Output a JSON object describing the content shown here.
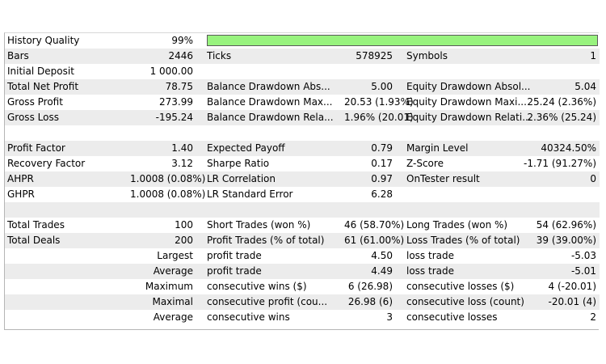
{
  "history": {
    "label": "History Quality",
    "value": "99%",
    "quality_fraction": 0.99
  },
  "rows": [
    {
      "shaded": true,
      "c1": [
        "Bars",
        "2446"
      ],
      "c2": [
        "Ticks",
        "578925"
      ],
      "c3": [
        "Symbols",
        "1"
      ]
    },
    {
      "shaded": false,
      "c1": [
        "Initial Deposit",
        "1 000.00"
      ]
    },
    {
      "shaded": true,
      "c1": [
        "Total Net Profit",
        "78.75"
      ],
      "c2": [
        "Balance Drawdown Abs...",
        "5.00"
      ],
      "c3": [
        "Equity Drawdown Absol...",
        "5.04"
      ]
    },
    {
      "shaded": false,
      "c1": [
        "Gross Profit",
        "273.99"
      ],
      "c2": [
        "Balance Drawdown Max...",
        "20.53 (1.93%)"
      ],
      "c3": [
        "Equity Drawdown Maxi...",
        "25.24 (2.36%)"
      ]
    },
    {
      "shaded": true,
      "c1": [
        "Gross Loss",
        "-195.24"
      ],
      "c2": [
        "Balance Drawdown Rela...",
        "1.96% (20.01)"
      ],
      "c3": [
        "Equity Drawdown Relati...",
        "2.36% (25.24)"
      ]
    },
    {
      "shaded": false
    },
    {
      "shaded": true,
      "c1": [
        "Profit Factor",
        "1.40"
      ],
      "c2": [
        "Expected Payoff",
        "0.79"
      ],
      "c3": [
        "Margin Level",
        "40324.50%"
      ]
    },
    {
      "shaded": false,
      "c1": [
        "Recovery Factor",
        "3.12"
      ],
      "c2": [
        "Sharpe Ratio",
        "0.17"
      ],
      "c3": [
        "Z-Score",
        "-1.71 (91.27%)"
      ]
    },
    {
      "shaded": true,
      "c1": [
        "AHPR",
        "1.0008 (0.08%)"
      ],
      "c2": [
        "LR Correlation",
        "0.97"
      ],
      "c3": [
        "OnTester result",
        "0"
      ]
    },
    {
      "shaded": false,
      "c1": [
        "GHPR",
        "1.0008 (0.08%)"
      ],
      "c2": [
        "LR Standard Error",
        "6.28"
      ]
    },
    {
      "shaded": true
    },
    {
      "shaded": false,
      "c1": [
        "Total Trades",
        "100"
      ],
      "c2": [
        "Short Trades (won %)",
        "46 (58.70%)"
      ],
      "c3": [
        "Long Trades (won %)",
        "54 (62.96%)"
      ]
    },
    {
      "shaded": true,
      "c1": [
        "Total Deals",
        "200"
      ],
      "c2": [
        "Profit Trades (% of total)",
        "61 (61.00%)"
      ],
      "c3": [
        "Loss Trades (% of total)",
        "39 (39.00%)"
      ]
    },
    {
      "shaded": false,
      "c1r": "Largest",
      "c2": [
        "profit trade",
        "4.50"
      ],
      "c3": [
        "loss trade",
        "-5.03"
      ]
    },
    {
      "shaded": true,
      "c1r": "Average",
      "c2": [
        "profit trade",
        "4.49"
      ],
      "c3": [
        "loss trade",
        "-5.01"
      ]
    },
    {
      "shaded": false,
      "c1r": "Maximum",
      "c2": [
        "consecutive wins ($)",
        "6 (26.98)"
      ],
      "c3": [
        "consecutive losses ($)",
        "4 (-20.01)"
      ]
    },
    {
      "shaded": true,
      "c1r": "Maximal",
      "c2": [
        "consecutive profit (cou...",
        "26.98 (6)"
      ],
      "c3": [
        "consecutive loss (count)",
        "-20.01 (4)"
      ]
    },
    {
      "shaded": false,
      "c1r": "Average",
      "c2": [
        "consecutive wins",
        "3"
      ],
      "c3": [
        "consecutive losses",
        "2"
      ]
    }
  ]
}
